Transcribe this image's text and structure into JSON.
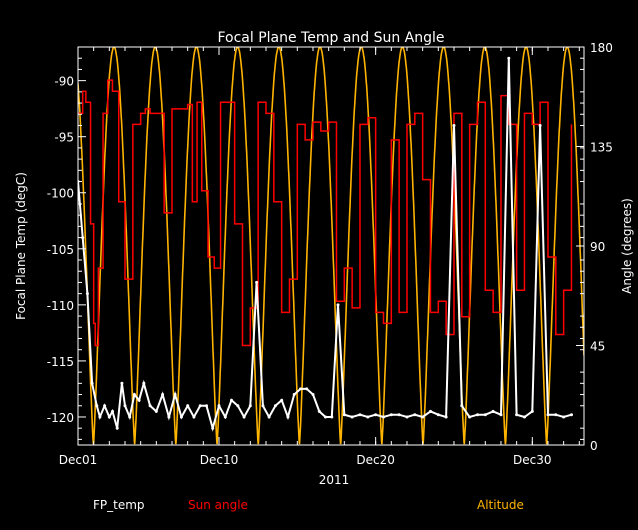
{
  "chart_data": {
    "type": "line",
    "title": "Focal Plane Temp and Sun Angle",
    "xlabel": "2011",
    "ylabel": "Focal Plane Temp (degC)",
    "y2label": "Angle (degrees)",
    "x_tick_labels": [
      {
        "day": 1,
        "label": "Dec01"
      },
      {
        "day": 10,
        "label": "Dec10"
      },
      {
        "day": 20,
        "label": "Dec20"
      },
      {
        "day": 30,
        "label": "Dec30"
      }
    ],
    "xlim": [
      1,
      33.3
    ],
    "ylim": [
      -122.5,
      -87
    ],
    "y2lim": [
      0,
      180
    ],
    "y_ticks": [
      -90,
      -95,
      -100,
      -105,
      -110,
      -115,
      -120
    ],
    "y2_ticks": [
      0,
      45,
      90,
      135,
      180
    ],
    "legend": [
      {
        "label": "FP_temp",
        "color": "#ffffff"
      },
      {
        "label": "Sun angle",
        "color": "#ff0000"
      },
      {
        "label": "Altitude",
        "color": "#ffb400"
      }
    ],
    "series": [
      {
        "name": "FP_temp",
        "axis": "left",
        "color": "#ffffff",
        "x": [
          1.0,
          1.3,
          1.6,
          1.9,
          2.2,
          2.4,
          2.7,
          3.0,
          3.2,
          3.5,
          3.8,
          4.0,
          4.3,
          4.6,
          4.9,
          5.2,
          5.6,
          6.0,
          6.4,
          6.8,
          7.2,
          7.6,
          8.0,
          8.4,
          8.8,
          9.2,
          9.6,
          10.0,
          10.4,
          10.8,
          11.2,
          11.6,
          12.0,
          12.4,
          12.8,
          13.2,
          13.6,
          14.0,
          14.4,
          14.8,
          15.2,
          15.6,
          16.0,
          16.4,
          16.8,
          17.2,
          17.6,
          18.0,
          18.5,
          19.0,
          19.5,
          20.0,
          20.5,
          21.0,
          21.5,
          22.0,
          22.5,
          23.0,
          23.5,
          24.0,
          24.5,
          25.0,
          25.5,
          26.0,
          26.5,
          27.0,
          27.5,
          28.0,
          28.5,
          29.0,
          29.5,
          30.0,
          30.5,
          31.0,
          31.5,
          32.0,
          32.5
        ],
        "values": [
          -99,
          -104,
          -109,
          -117,
          -119,
          -120,
          -119,
          -120,
          -119.5,
          -121,
          -117,
          -119,
          -120,
          -118,
          -118.5,
          -117,
          -119,
          -119.5,
          -118,
          -120,
          -118,
          -120,
          -119,
          -120,
          -119,
          -119,
          -121,
          -119,
          -120,
          -118.5,
          -119,
          -120,
          -119,
          -108,
          -119,
          -120,
          -119,
          -118.5,
          -120,
          -118,
          -117.5,
          -117.5,
          -118,
          -119.5,
          -120,
          -120,
          -110,
          -119.8,
          -120,
          -119.8,
          -120,
          -119.8,
          -120,
          -119.8,
          -119.8,
          -120,
          -119.8,
          -120,
          -119.5,
          -119.8,
          -120,
          -94,
          -119,
          -120,
          -119.8,
          -119.8,
          -119.5,
          -119.8,
          -88,
          -119.8,
          -120,
          -119.5,
          -94,
          -119.8,
          -119.8,
          -120,
          -119.8
        ]
      },
      {
        "name": "Sun angle",
        "axis": "right",
        "color": "#ff0000",
        "x": [
          1.0,
          1.3,
          1.5,
          1.8,
          2.0,
          2.1,
          2.3,
          2.6,
          2.9,
          3.2,
          3.6,
          4.0,
          4.5,
          5.0,
          5.3,
          5.6,
          6.0,
          6.5,
          7.0,
          7.5,
          8.0,
          8.3,
          8.6,
          8.9,
          9.3,
          9.7,
          10.1,
          10.5,
          11.0,
          11.5,
          12.0,
          12.5,
          13.0,
          13.5,
          14.0,
          14.5,
          15.0,
          15.5,
          16.0,
          16.5,
          17.0,
          17.5,
          18.0,
          18.5,
          19.0,
          19.5,
          20.0,
          20.5,
          21.0,
          21.5,
          22.0,
          22.5,
          23.0,
          23.5,
          24.0,
          24.5,
          25.0,
          25.5,
          26.0,
          26.5,
          27.0,
          27.5,
          28.0,
          28.5,
          29.0,
          29.5,
          30.0,
          30.5,
          31.0,
          31.5,
          32.0,
          32.5
        ],
        "values": [
          150,
          160,
          155,
          100,
          55,
          45,
          80,
          150,
          165,
          160,
          110,
          75,
          145,
          150,
          152,
          150,
          150,
          105,
          152,
          152,
          154,
          110,
          155,
          115,
          85,
          80,
          155,
          155,
          100,
          45,
          62,
          155,
          150,
          110,
          60,
          75,
          145,
          138,
          146,
          142,
          146,
          65,
          80,
          62,
          145,
          148,
          60,
          55,
          138,
          60,
          145,
          150,
          120,
          60,
          65,
          50,
          150,
          58,
          145,
          155,
          70,
          60,
          158,
          145,
          70,
          150,
          145,
          155,
          85,
          50,
          70,
          145
        ]
      },
      {
        "name": "Altitude",
        "axis": "right",
        "color": "#ffb400",
        "description": "periodic orbit, ~2.63 day period, peaks at 180, troughs at 0",
        "period_days": 2.63,
        "first_peak_day": 3.3,
        "min": 0,
        "max": 180
      }
    ]
  }
}
